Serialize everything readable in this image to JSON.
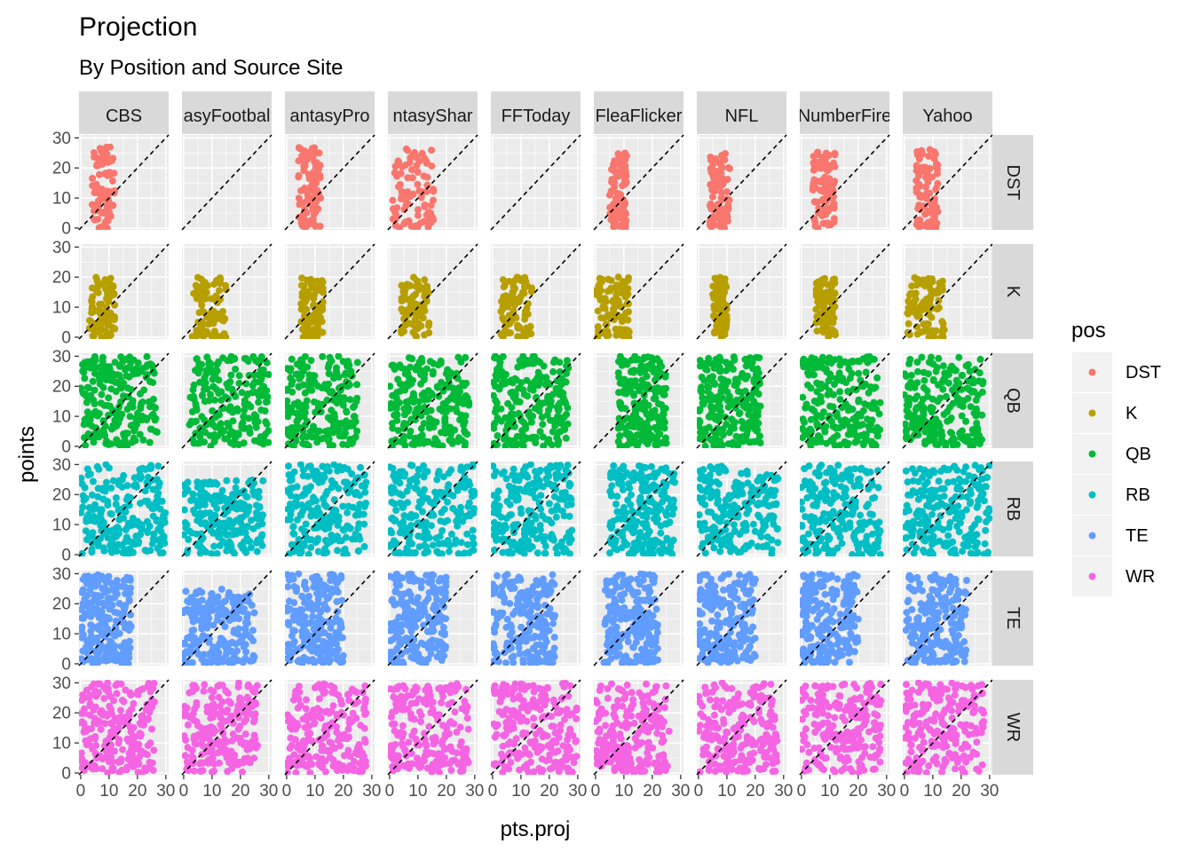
{
  "chart_data": {
    "type": "scatter",
    "title": "Projection",
    "subtitle": "By Position and Source Site",
    "xlabel": "pts.proj",
    "ylabel": "points",
    "xlim": [
      -0.6,
      31
    ],
    "ylim": [
      -0.6,
      31
    ],
    "x_ticks": [
      "0",
      "10",
      "20",
      "30"
    ],
    "y_ticks": [
      "0",
      "10",
      "20",
      "30"
    ],
    "reference_line": {
      "style": "dashed",
      "slope": 1,
      "intercept": 0
    },
    "grid": true,
    "facet_columns": [
      "CBS",
      "FantasyFootballNerd",
      "FantasyPros",
      "FantasySharks",
      "FFToday",
      "FleaFlicker",
      "NFL",
      "NumberFire",
      "Yahoo"
    ],
    "facet_columns_visible": [
      "CBS",
      "asyFootbal",
      "antasyPro",
      "ntasyShar",
      "FFToday",
      "FleaFlicker",
      "NFL",
      "NumberFire",
      "Yahoo"
    ],
    "facet_rows": [
      "DST",
      "K",
      "QB",
      "RB",
      "TE",
      "WR"
    ],
    "legend": {
      "title": "pos",
      "position": "right",
      "items": [
        {
          "label": "DST",
          "color": "#F8766D"
        },
        {
          "label": "K",
          "color": "#B79F00"
        },
        {
          "label": "QB",
          "color": "#00BA38"
        },
        {
          "label": "RB",
          "color": "#00BFC4"
        },
        {
          "label": "TE",
          "color": "#619CFF"
        },
        {
          "label": "WR",
          "color": "#F564E3"
        }
      ]
    },
    "panels_approx_distribution": {
      "description": "Approximate point clouds per panel (x range in pts.proj, y range in points)",
      "DST": {
        "CBS": [
          [
            4,
            12
          ],
          [
            0,
            27
          ]
        ],
        "FantasyFootballNerd": null,
        "FantasyPros": [
          [
            4,
            12
          ],
          [
            0,
            27
          ]
        ],
        "FantasySharks": [
          [
            1,
            16
          ],
          [
            0,
            27
          ]
        ],
        "FFToday": null,
        "FleaFlicker": [
          [
            5,
            11
          ],
          [
            0,
            25
          ]
        ],
        "NFL": [
          [
            4,
            11
          ],
          [
            0,
            26
          ]
        ],
        "NumberFire": [
          [
            4,
            12
          ],
          [
            0,
            26
          ]
        ],
        "Yahoo": [
          [
            4,
            12
          ],
          [
            0,
            27
          ]
        ]
      },
      "K": {
        "CBS": [
          [
            3,
            12
          ],
          [
            0,
            20
          ]
        ],
        "FantasyFootballNerd": [
          [
            3,
            15
          ],
          [
            0,
            20
          ]
        ],
        "FantasyPros": [
          [
            5,
            13
          ],
          [
            0,
            20
          ]
        ],
        "FantasySharks": [
          [
            4,
            14
          ],
          [
            0,
            20
          ]
        ],
        "FFToday": [
          [
            3,
            14
          ],
          [
            0,
            20
          ]
        ],
        "FleaFlicker": [
          [
            0,
            12
          ],
          [
            0,
            20
          ]
        ],
        "NFL": [
          [
            5,
            10
          ],
          [
            0,
            20
          ]
        ],
        "NumberFire": [
          [
            5,
            12
          ],
          [
            0,
            20
          ]
        ],
        "Yahoo": [
          [
            1,
            14
          ],
          [
            0,
            20
          ]
        ]
      },
      "QB": {
        "CBS": [
          [
            0,
            27
          ],
          [
            0,
            30
          ]
        ],
        "FantasyFootballNerd": [
          [
            2,
            30
          ],
          [
            0,
            30
          ]
        ],
        "FantasyPros": [
          [
            0,
            25
          ],
          [
            0,
            30
          ]
        ],
        "FantasySharks": [
          [
            0,
            28
          ],
          [
            0,
            30
          ]
        ],
        "FFToday": [
          [
            0,
            27
          ],
          [
            0,
            30
          ]
        ],
        "FleaFlicker": [
          [
            8,
            25
          ],
          [
            0,
            30
          ]
        ],
        "NFL": [
          [
            0,
            22
          ],
          [
            0,
            30
          ]
        ],
        "NumberFire": [
          [
            0,
            28
          ],
          [
            0,
            30
          ]
        ],
        "Yahoo": [
          [
            0,
            28
          ],
          [
            0,
            30
          ]
        ]
      },
      "RB": {
        "CBS": [
          [
            0,
            30
          ],
          [
            0,
            30
          ]
        ],
        "FantasyFootballNerd": [
          [
            0,
            28
          ],
          [
            0,
            25
          ]
        ],
        "FantasyPros": [
          [
            0,
            28
          ],
          [
            0,
            30
          ]
        ],
        "FantasySharks": [
          [
            0,
            30
          ],
          [
            0,
            30
          ]
        ],
        "FFToday": [
          [
            0,
            28
          ],
          [
            0,
            30
          ]
        ],
        "FleaFlicker": [
          [
            5,
            28
          ],
          [
            0,
            30
          ]
        ],
        "NFL": [
          [
            0,
            28
          ],
          [
            0,
            30
          ]
        ],
        "NumberFire": [
          [
            0,
            28
          ],
          [
            0,
            30
          ]
        ],
        "Yahoo": [
          [
            0,
            30
          ],
          [
            0,
            30
          ]
        ]
      },
      "TE": {
        "CBS": [
          [
            0,
            18
          ],
          [
            0,
            30
          ]
        ],
        "FantasyFootballNerd": [
          [
            0,
            25
          ],
          [
            0,
            25
          ]
        ],
        "FantasyPros": [
          [
            0,
            20
          ],
          [
            0,
            30
          ]
        ],
        "FantasySharks": [
          [
            0,
            20
          ],
          [
            0,
            30
          ]
        ],
        "FFToday": [
          [
            0,
            22
          ],
          [
            0,
            30
          ]
        ],
        "FleaFlicker": [
          [
            3,
            22
          ],
          [
            0,
            30
          ]
        ],
        "NFL": [
          [
            0,
            20
          ],
          [
            0,
            30
          ]
        ],
        "NumberFire": [
          [
            0,
            20
          ],
          [
            0,
            30
          ]
        ],
        "Yahoo": [
          [
            0,
            22
          ],
          [
            0,
            30
          ]
        ]
      },
      "WR": {
        "CBS": [
          [
            0,
            26
          ],
          [
            0,
            30
          ]
        ],
        "FantasyFootballNerd": [
          [
            0,
            26
          ],
          [
            0,
            30
          ]
        ],
        "FantasyPros": [
          [
            0,
            28
          ],
          [
            0,
            30
          ]
        ],
        "FantasySharks": [
          [
            0,
            28
          ],
          [
            0,
            30
          ]
        ],
        "FFToday": [
          [
            0,
            30
          ],
          [
            0,
            30
          ]
        ],
        "FleaFlicker": [
          [
            0,
            26
          ],
          [
            0,
            30
          ]
        ],
        "NFL": [
          [
            0,
            28
          ],
          [
            0,
            30
          ]
        ],
        "NumberFire": [
          [
            0,
            28
          ],
          [
            0,
            30
          ]
        ],
        "Yahoo": [
          [
            0,
            28
          ],
          [
            0,
            30
          ]
        ]
      }
    }
  }
}
